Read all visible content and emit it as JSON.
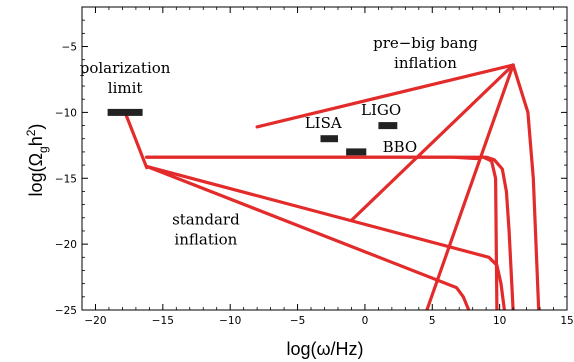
{
  "chart_data": {
    "type": "line",
    "title": "",
    "xlabel": "log(ω/Hz)",
    "ylabel": "log(Ωgh²)",
    "xlim": [
      -21,
      15
    ],
    "ylim": [
      -25,
      -2
    ],
    "grid": false,
    "x_ticks": [
      -20,
      -15,
      -10,
      -5,
      0,
      5,
      10,
      15
    ],
    "y_ticks": [
      -5,
      -10,
      -15,
      -20,
      -25
    ],
    "x_tick_labels": [
      "−20",
      "−15",
      "−10",
      "−5",
      "0",
      "5",
      "10",
      "15"
    ],
    "y_tick_labels": [
      "−5",
      "−10",
      "−15",
      "−20",
      "−25"
    ],
    "line_color": "#e32b2b",
    "marker_color": "#222222",
    "curves": [
      {
        "x": [
          -16.2,
          -17.8
        ],
        "y": [
          -14.2,
          -10.0
        ]
      },
      {
        "x": [
          -16.2,
          9.0,
          9.6,
          10.2,
          10.5,
          10.7,
          10.85,
          11.0
        ],
        "y": [
          -13.4,
          -13.4,
          -13.6,
          -14.3,
          -16.0,
          -19.0,
          -22.0,
          -25.0
        ]
      },
      {
        "x": [
          -16.2,
          9.2,
          9.8,
          10.1,
          10.35
        ],
        "y": [
          -14.1,
          -21.0,
          -21.6,
          -23.0,
          -25.0
        ]
      },
      {
        "x": [
          -16.2,
          6.8,
          7.3,
          7.7
        ],
        "y": [
          -14.1,
          -23.3,
          -24.0,
          -25.0
        ]
      },
      {
        "x": [
          -16.2,
          6.5,
          8.2,
          8.5
        ],
        "y": [
          -13.4,
          -13.4,
          -13.5,
          -13.5
        ]
      },
      {
        "x": [
          8.8,
          9.4,
          9.7,
          9.8
        ],
        "y": [
          -13.4,
          -13.7,
          -15.0,
          -25.0
        ]
      },
      {
        "x": [
          -8.0,
          11.0,
          12.1,
          12.5,
          12.7,
          12.9
        ],
        "y": [
          -11.1,
          -6.4,
          -10.0,
          -15.0,
          -20.0,
          -25.0
        ]
      },
      {
        "x": [
          11.0,
          4.6
        ],
        "y": [
          -6.4,
          -25.0
        ]
      },
      {
        "x": [
          11.0,
          -1.0
        ],
        "y": [
          -6.4,
          -18.2
        ]
      }
    ],
    "markers": [
      {
        "label": "polarization limit",
        "x": [
          -19.1,
          -16.5
        ],
        "y": -10.0
      },
      {
        "label": "LISA",
        "x": [
          -3.3,
          -2.0
        ],
        "y": -12.0
      },
      {
        "label": "BBO",
        "x": [
          -1.4,
          0.1
        ],
        "y": -13.0
      },
      {
        "label": "LIGO",
        "x": [
          1.0,
          2.4
        ],
        "y": -11.0
      }
    ],
    "annotations": [
      {
        "id": "pre_big_bang",
        "lines": [
          "pre−big bang",
          "inflation"
        ],
        "x": 4.5,
        "y": -5.1
      },
      {
        "id": "polarization",
        "lines": [
          "polarization",
          "limit"
        ],
        "x": -17.8,
        "y": -7.0
      },
      {
        "id": "standard",
        "lines": [
          "standard",
          "inflation"
        ],
        "x": -11.8,
        "y": -18.5
      },
      {
        "id": "lisa",
        "lines": [
          "LISA"
        ],
        "x": -3.1,
        "y": -11.2
      },
      {
        "id": "ligo",
        "lines": [
          "LIGO"
        ],
        "x": 1.2,
        "y": -10.2
      },
      {
        "id": "bbo",
        "lines": [
          "BBO"
        ],
        "x": 2.6,
        "y": -13.0
      }
    ]
  }
}
